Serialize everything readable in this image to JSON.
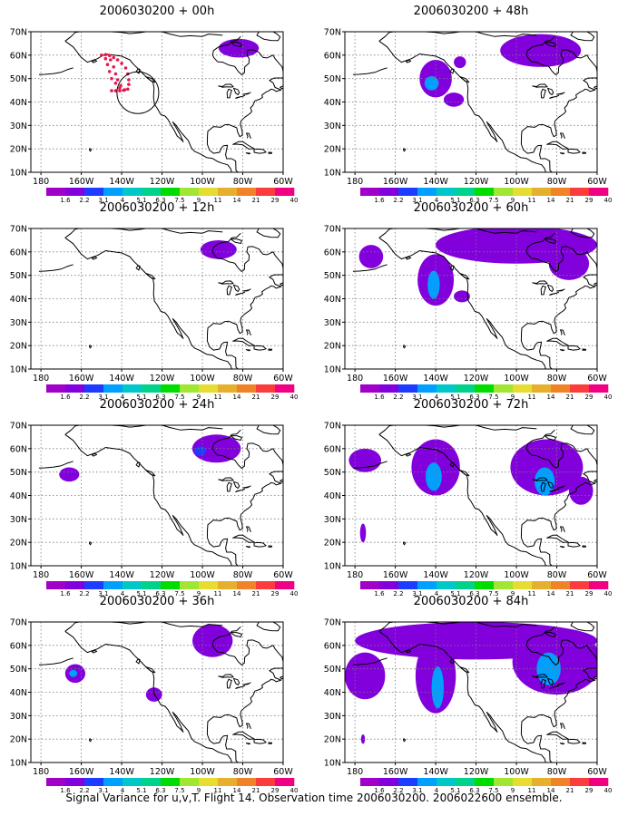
{
  "caption": "Signal Variance for u,v,T. Flight 14. Observation time 2006030200. 2006022600 ensemble.",
  "axes": {
    "lat_labels": [
      "70N",
      "60N",
      "50N",
      "40N",
      "30N",
      "20N",
      "10N"
    ],
    "lon_labels": [
      "180",
      "160W",
      "140W",
      "120W",
      "100W",
      "80W",
      "60W"
    ],
    "lat_range": [
      10,
      70
    ],
    "lon_range": [
      -185,
      -60
    ]
  },
  "colorbar": {
    "labels": [
      "1.6",
      "2.2",
      "3.1",
      "4",
      "5.1",
      "6.3",
      "7.5",
      "9",
      "11",
      "14",
      "21",
      "29",
      "40"
    ],
    "colors": [
      "#a000c8",
      "#8200dc",
      "#1e3cff",
      "#00a0ff",
      "#00c8c8",
      "#00d28c",
      "#00dc00",
      "#a0e632",
      "#e6dc32",
      "#e6af2d",
      "#f08228",
      "#fa3c3c",
      "#f00082"
    ]
  },
  "panels": [
    {
      "title": "2006030200 + 00h",
      "blobs": [
        {
          "lon": -82,
          "lat": 63,
          "rx": 10,
          "ry": 4,
          "level": 1
        }
      ],
      "obs_track": true,
      "circle": true
    },
    {
      "title": "2006030200 + 48h",
      "blobs": [
        {
          "lon": -140,
          "lat": 50,
          "rx": 8,
          "ry": 8,
          "level": 1
        },
        {
          "lon": -142,
          "lat": 48,
          "rx": 3.5,
          "ry": 3,
          "level": 3
        },
        {
          "lon": -88,
          "lat": 62,
          "rx": 20,
          "ry": 7,
          "level": 1
        },
        {
          "lon": -131,
          "lat": 41,
          "rx": 5,
          "ry": 3,
          "level": 1
        },
        {
          "lon": -128,
          "lat": 57,
          "rx": 3,
          "ry": 2.5,
          "level": 1
        }
      ]
    },
    {
      "title": "2006030200 + 12h",
      "blobs": [
        {
          "lon": -92,
          "lat": 61,
          "rx": 9,
          "ry": 4,
          "level": 1
        }
      ]
    },
    {
      "title": "2006030200 + 60h",
      "blobs": [
        {
          "lon": -140,
          "lat": 48,
          "rx": 9,
          "ry": 11,
          "level": 1
        },
        {
          "lon": -141,
          "lat": 46,
          "rx": 3,
          "ry": 6,
          "level": 3
        },
        {
          "lon": -172,
          "lat": 58,
          "rx": 6,
          "ry": 5,
          "level": 1
        },
        {
          "lon": -100,
          "lat": 63,
          "rx": 40,
          "ry": 8,
          "level": 1
        },
        {
          "lon": -74,
          "lat": 55,
          "rx": 10,
          "ry": 7,
          "level": 1
        },
        {
          "lon": -127,
          "lat": 41,
          "rx": 4,
          "ry": 2.5,
          "level": 1
        }
      ]
    },
    {
      "title": "2006030200 + 24h",
      "blobs": [
        {
          "lon": -93,
          "lat": 60,
          "rx": 12,
          "ry": 6,
          "level": 1
        },
        {
          "lon": -166,
          "lat": 49,
          "rx": 5,
          "ry": 3,
          "level": 1
        },
        {
          "lon": -101,
          "lat": 59,
          "rx": 3,
          "ry": 2,
          "level": 2
        }
      ]
    },
    {
      "title": "2006030200 + 72h",
      "blobs": [
        {
          "lon": -140,
          "lat": 52,
          "rx": 12,
          "ry": 12,
          "level": 1
        },
        {
          "lon": -141,
          "lat": 48,
          "rx": 4,
          "ry": 6,
          "level": 3
        },
        {
          "lon": -85,
          "lat": 52,
          "rx": 18,
          "ry": 12,
          "level": 1
        },
        {
          "lon": -86,
          "lat": 46,
          "rx": 5,
          "ry": 6,
          "level": 3
        },
        {
          "lon": -175,
          "lat": 55,
          "rx": 8,
          "ry": 5,
          "level": 1
        },
        {
          "lon": -176,
          "lat": 24,
          "rx": 1.5,
          "ry": 4,
          "level": 1
        },
        {
          "lon": -68,
          "lat": 42,
          "rx": 6,
          "ry": 6,
          "level": 1
        }
      ]
    },
    {
      "title": "2006030200 + 36h",
      "blobs": [
        {
          "lon": -95,
          "lat": 62,
          "rx": 10,
          "ry": 7,
          "level": 1
        },
        {
          "lon": -163,
          "lat": 48,
          "rx": 5,
          "ry": 4,
          "level": 1
        },
        {
          "lon": -164,
          "lat": 48,
          "rx": 2,
          "ry": 1.5,
          "level": 3
        },
        {
          "lon": -124,
          "lat": 39,
          "rx": 4,
          "ry": 3,
          "level": 1
        }
      ]
    },
    {
      "title": "2006030200 + 84h",
      "blobs": [
        {
          "lon": -140,
          "lat": 47,
          "rx": 10,
          "ry": 16,
          "level": 1
        },
        {
          "lon": -139,
          "lat": 42,
          "rx": 3,
          "ry": 9,
          "level": 3
        },
        {
          "lon": -120,
          "lat": 62,
          "rx": 60,
          "ry": 8,
          "level": 1
        },
        {
          "lon": -80,
          "lat": 53,
          "rx": 22,
          "ry": 14,
          "level": 1
        },
        {
          "lon": -84,
          "lat": 50,
          "rx": 6,
          "ry": 7,
          "level": 3
        },
        {
          "lon": -175,
          "lat": 47,
          "rx": 10,
          "ry": 10,
          "level": 1
        },
        {
          "lon": -176,
          "lat": 20,
          "rx": 1,
          "ry": 2,
          "level": 1
        }
      ]
    }
  ]
}
